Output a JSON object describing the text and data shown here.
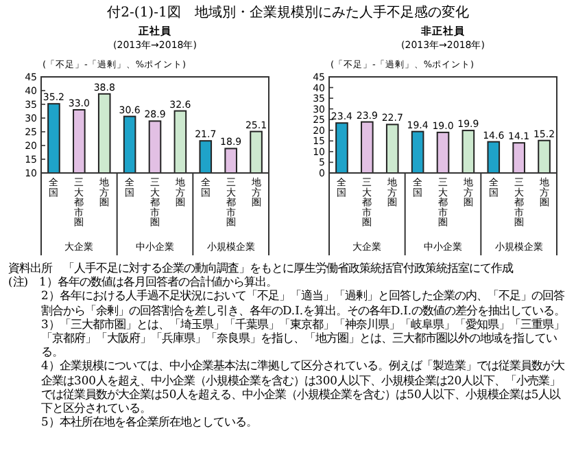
{
  "chart_data": [
    {
      "type": "bar",
      "title": "正社員",
      "subtitle": "(2013年→2018年)",
      "ylabel": "(「不足」-「過剰」、%ポイント)",
      "categories": [
        "全国",
        "三大都市圏",
        "地方圏",
        "全国",
        "三大都市圏",
        "地方圏",
        "全国",
        "三大都市圏",
        "地方圏"
      ],
      "values": [
        35.2,
        33.0,
        38.8,
        30.6,
        28.9,
        32.6,
        21.7,
        18.9,
        25.1
      ],
      "value_labels": [
        "35.2",
        "33.0",
        "38.8",
        "30.6",
        "28.9",
        "32.6",
        "21.7",
        "18.9",
        "25.1"
      ],
      "colors": [
        "#1fa3c9",
        "#e2c0e4",
        "#cde9cf",
        "#1fa3c9",
        "#e2c0e4",
        "#cde9cf",
        "#1fa3c9",
        "#e2c0e4",
        "#cde9cf"
      ],
      "ylim": [
        10,
        45
      ],
      "yticks": [
        10,
        15,
        20,
        25,
        30,
        35,
        40,
        45
      ],
      "annotations": [
        "大企業",
        "中小企業",
        "小規模企業",
        "付2-(1)-1図　地域別・企業規模別にみた人手不足感の変化",
        "資料出所　「人手不足に対する企業の動向調査」をもとに厚生労働省政策統括官付政策統括室にて作成",
        "(注)　1）各年の数値は各月回答者の合計値から算出。",
        "2）各年における人手過不足状況において「不足」「適当」「過剰」と回答した企業の内、「不足」の回答割合から「余剰」の回答割合を差し引き、各年のD.I.を算出。その各年D.I.の数値の差分を抽出している。",
        "3）「三大都市圏」とは、「埼玉県」「千葉県」「東京都」「神奈川県」「岐阜県」「愛知県」「三重県」「京都府」「大阪府」「兵庫県」「奈良県」を指し、「地方圏」とは、三大都市圏以外の地域を指している。",
        "4）企業規模については、中小企業基本法に準拠して区分されている。例えば「製造業」では従業員数が大企業は300人を超え、中小企業（小規模企業を含む）は300人以下、小規模企業は20人以下、「小売業」では従業員数が大企業は50人を超える、中小企業（小規模企業を含む）は50人以下、小規模企業は5人以下と区分されている。",
        "5）本社所在地を各企業所在地としている。"
      ]
    },
    {
      "type": "bar",
      "title": "非正社員",
      "subtitle": "(2013年→2018年)",
      "ylabel": "(「不足」-「過剰」、%ポイント)",
      "categories": [
        "全国",
        "三大都市圏",
        "地方圏",
        "全国",
        "三大都市圏",
        "地方圏",
        "全国",
        "三大都市圏",
        "地方圏"
      ],
      "values": [
        23.4,
        23.9,
        22.7,
        19.4,
        19.0,
        19.9,
        14.6,
        14.1,
        15.2
      ],
      "value_labels": [
        "23.4",
        "23.9",
        "22.7",
        "19.4",
        "19.0",
        "19.9",
        "14.6",
        "14.1",
        "15.2"
      ],
      "colors": [
        "#1fa3c9",
        "#e2c0e4",
        "#cde9cf",
        "#1fa3c9",
        "#e2c0e4",
        "#cde9cf",
        "#1fa3c9",
        "#e2c0e4",
        "#cde9cf"
      ],
      "ylim": [
        0,
        45
      ],
      "yticks": [
        0,
        5,
        10,
        15,
        20,
        25,
        30,
        35,
        40,
        45
      ],
      "annotations": [
        "大企業",
        "中小企業",
        "小規模企業"
      ]
    }
  ]
}
